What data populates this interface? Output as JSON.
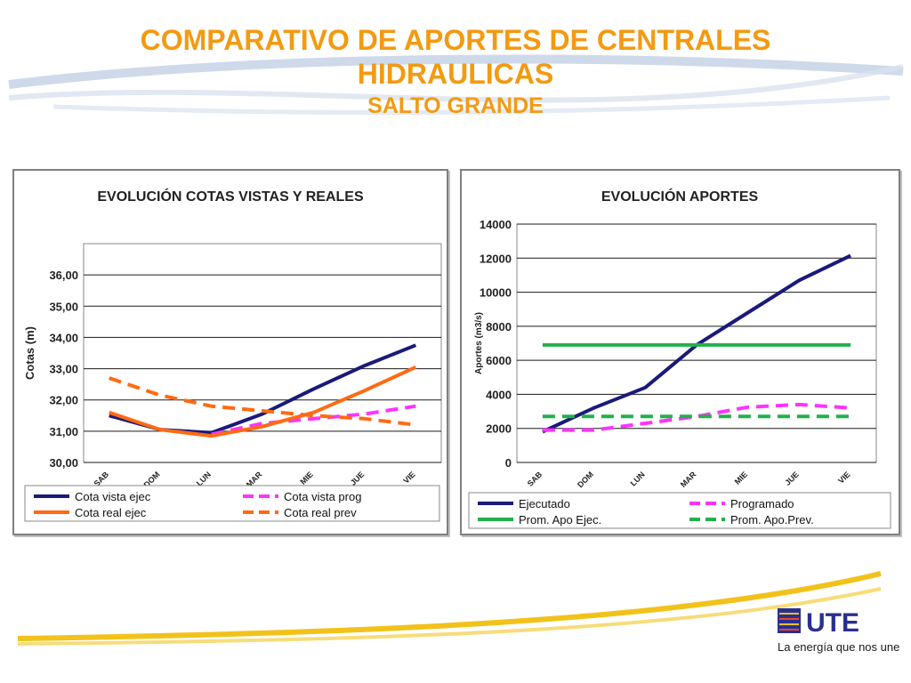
{
  "slide": {
    "title_line1": "COMPARATIVO DE APORTES DE CENTRALES",
    "title_line2": "HIDRAULICAS",
    "subtitle": "SALTO GRANDE",
    "colors": {
      "title": "#f39a12",
      "swoosh": "#c9d6e8",
      "accent_line": "#f2c21a"
    }
  },
  "logo": {
    "name": "UTE",
    "slogan": "La energía que nos une"
  },
  "chart_data": [
    {
      "type": "line",
      "title": "EVOLUCIÓN  COTAS VISTAS Y REALES",
      "xlabel": "",
      "ylabel": "Cotas  (m)",
      "categories": [
        "SAB",
        "DOM",
        "LUN",
        "MAR",
        "MIE",
        "JUE",
        "VIE"
      ],
      "ylim": [
        30,
        37
      ],
      "y_ticks": [
        "30,00",
        "31,00",
        "32,00",
        "33,00",
        "34,00",
        "35,00",
        "36,00"
      ],
      "grid": true,
      "legend_position": "bottom",
      "series": [
        {
          "name": "Cota vista ejec",
          "values": [
            31.5,
            31.05,
            30.95,
            31.55,
            32.35,
            33.1,
            33.75
          ],
          "color": "#1a1a7a",
          "dash": false
        },
        {
          "name": "Cota vista prog",
          "values": [
            null,
            null,
            30.9,
            31.25,
            31.4,
            31.55,
            31.8
          ],
          "color": "#ff33ff",
          "dash": true
        },
        {
          "name": "Cota real ejec",
          "values": [
            31.6,
            31.05,
            30.85,
            31.15,
            31.6,
            32.3,
            33.05
          ],
          "color": "#ff6a13",
          "dash": false
        },
        {
          "name": "Cota real prev",
          "values": [
            32.7,
            32.15,
            31.8,
            31.65,
            31.5,
            31.4,
            31.2
          ],
          "color": "#ff6a13",
          "dash": true
        }
      ]
    },
    {
      "type": "line",
      "title": "EVOLUCIÓN  APORTES",
      "xlabel": "",
      "ylabel": "Aportes (m3/s)",
      "categories": [
        "SAB",
        "DOM",
        "LUN",
        "MAR",
        "MIE",
        "JUE",
        "VIE"
      ],
      "ylim": [
        0,
        14000
      ],
      "y_ticks": [
        "0",
        "2000",
        "4000",
        "6000",
        "8000",
        "10000",
        "12000",
        "14000"
      ],
      "grid": true,
      "legend_position": "bottom",
      "series": [
        {
          "name": "Ejecutado",
          "values": [
            1800,
            3200,
            4400,
            6900,
            8800,
            10700,
            12150
          ],
          "color": "#1a1a7a",
          "dash": false
        },
        {
          "name": "Programado",
          "values": [
            1900,
            1900,
            2300,
            2700,
            3250,
            3400,
            3200
          ],
          "color": "#ff33ff",
          "dash": true
        },
        {
          "name": "Prom. Apo Ejec.",
          "values": [
            6900,
            6900,
            6900,
            6900,
            6900,
            6900,
            6900
          ],
          "color": "#22b04b",
          "dash": false
        },
        {
          "name": "Prom. Apo.Prev.",
          "values": [
            2700,
            2700,
            2700,
            2700,
            2700,
            2700,
            2700
          ],
          "color": "#22b04b",
          "dash": true
        }
      ]
    }
  ]
}
